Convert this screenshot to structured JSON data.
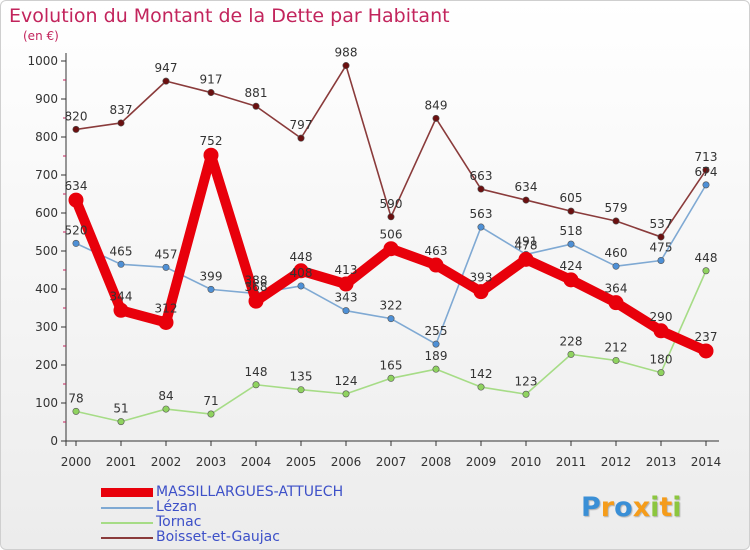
{
  "chart_data": {
    "type": "line",
    "title": "Evolution du Montant de la Dette par Habitant",
    "subtitle": "(en €)",
    "xlabel": "",
    "ylabel": "",
    "x": [
      "2000",
      "2001",
      "2002",
      "2003",
      "2004",
      "2005",
      "2006",
      "2007",
      "2008",
      "2009",
      "2010",
      "2011",
      "2012",
      "2013",
      "2014"
    ],
    "ylim": [
      0,
      1000
    ],
    "yticks": [
      "0",
      "100",
      "200",
      "300",
      "400",
      "500",
      "600",
      "700",
      "800",
      "900",
      "1000"
    ],
    "grid": false,
    "legend_position": "bottom-left",
    "series": [
      {
        "name": "MASSILLARGUES-ATTUECH",
        "color": "#e8000b",
        "marker_fill": "#e8000b",
        "values": [
          634,
          344,
          312,
          752,
          368,
          448,
          413,
          506,
          463,
          393,
          478,
          424,
          364,
          290,
          237
        ],
        "labels": [
          "634",
          "344",
          "312",
          "752",
          "368",
          "448",
          "413",
          "506",
          "463",
          "393",
          "478",
          "424",
          "364",
          "290",
          "237"
        ]
      },
      {
        "name": "Lézan",
        "color": "#7fa9d3",
        "marker_fill": "#4e90d6",
        "values": [
          520,
          465,
          457,
          399,
          388,
          408,
          343,
          322,
          255,
          563,
          491,
          518,
          460,
          475,
          674
        ],
        "labels": [
          "520",
          "465",
          "457",
          "399",
          "388",
          "408",
          "343",
          "322",
          "255",
          "563",
          "491",
          "518",
          "460",
          "475",
          "674"
        ]
      },
      {
        "name": "Tornac",
        "color": "#a6dc86",
        "marker_fill": "#8fd35f",
        "values": [
          78,
          51,
          84,
          71,
          148,
          135,
          124,
          165,
          189,
          142,
          123,
          228,
          212,
          180,
          448
        ],
        "labels": [
          "78",
          "51",
          "84",
          "71",
          "148",
          "135",
          "124",
          "165",
          "189",
          "142",
          "123",
          "228",
          "212",
          "180",
          "448"
        ]
      },
      {
        "name": "Boisset-et-Gaujac",
        "color": "#8a3b3b",
        "marker_fill": "#6b1010",
        "values": [
          820,
          837,
          947,
          917,
          881,
          797,
          988,
          590,
          849,
          663,
          634,
          605,
          579,
          537,
          713
        ],
        "labels": [
          "820",
          "837",
          "947",
          "917",
          "881",
          "797",
          "988",
          "590",
          "849",
          "663",
          "634",
          "605",
          "579",
          "537",
          "713"
        ]
      }
    ]
  },
  "brand": {
    "letters": [
      "P",
      "r",
      "o",
      "x",
      "i",
      "t",
      "i"
    ],
    "colors": [
      "#3a8fd6",
      "#f59c1a",
      "#3a8fd6",
      "#f59c1a",
      "#8cc63f",
      "#f59c1a",
      "#8cc63f"
    ]
  }
}
